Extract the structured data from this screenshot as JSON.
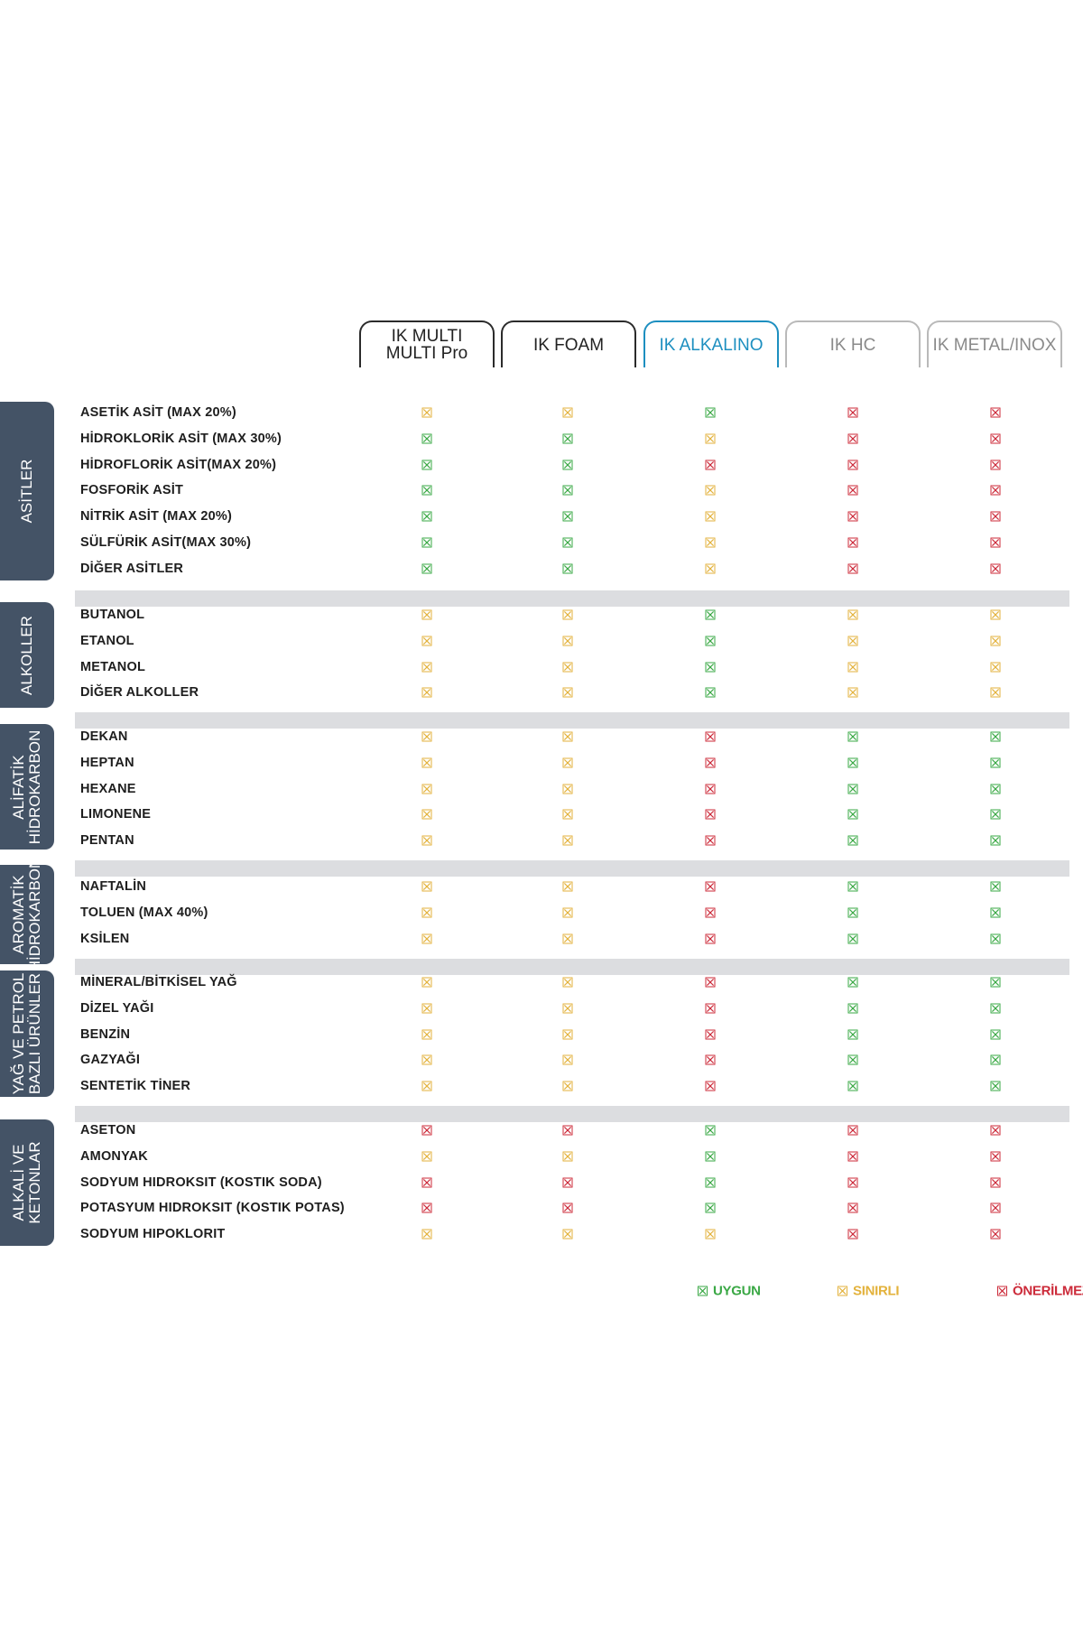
{
  "chart_data": {
    "type": "table",
    "columns": [
      {
        "label": "IK MULTI\nMULTI Pro",
        "style": "normal"
      },
      {
        "label": "IK FOAM",
        "style": "normal"
      },
      {
        "label": "IK ALKALINO",
        "style": "highlight"
      },
      {
        "label": "IK HC",
        "style": "light"
      },
      {
        "label": "IK METAL/INOX",
        "style": "light"
      }
    ],
    "status_legend": {
      "G": "UYGUN",
      "Y": "SINIRLI",
      "R": "ÖNERİLMEZ"
    },
    "groups": [
      {
        "name": "ASİTLER",
        "rows": [
          {
            "label": "ASETİK ASİT (MAX 20%)",
            "values": [
              "Y",
              "Y",
              "G",
              "R",
              "R"
            ]
          },
          {
            "label": "HİDROKLORİK ASİT (MAX 30%)",
            "values": [
              "G",
              "G",
              "Y",
              "R",
              "R"
            ]
          },
          {
            "label": "HİDROFLORİK ASİT(MAX 20%)",
            "values": [
              "G",
              "G",
              "R",
              "R",
              "R"
            ]
          },
          {
            "label": "FOSFORİK ASİT",
            "values": [
              "G",
              "G",
              "Y",
              "R",
              "R"
            ]
          },
          {
            "label": "NİTRİK ASİT (MAX 20%)",
            "values": [
              "G",
              "G",
              "Y",
              "R",
              "R"
            ]
          },
          {
            "label": "SÜLFÜRİK ASİT(MAX 30%)",
            "values": [
              "G",
              "G",
              "Y",
              "R",
              "R"
            ]
          },
          {
            "label": "DİĞER ASİTLER",
            "values": [
              "G",
              "G",
              "Y",
              "R",
              "R"
            ]
          }
        ]
      },
      {
        "name": "ALKOLLER",
        "rows": [
          {
            "label": "BUTANOL",
            "values": [
              "Y",
              "Y",
              "G",
              "Y",
              "Y"
            ]
          },
          {
            "label": "ETANOL",
            "values": [
              "Y",
              "Y",
              "G",
              "Y",
              "Y"
            ]
          },
          {
            "label": "METANOL",
            "values": [
              "Y",
              "Y",
              "G",
              "Y",
              "Y"
            ]
          },
          {
            "label": "DİĞER ALKOLLER",
            "values": [
              "Y",
              "Y",
              "G",
              "Y",
              "Y"
            ]
          }
        ]
      },
      {
        "name": "ALİFATİK\nHİDROKARBON",
        "rows": [
          {
            "label": "DEKAN",
            "values": [
              "Y",
              "Y",
              "R",
              "G",
              "G"
            ]
          },
          {
            "label": "HEPTAN",
            "values": [
              "Y",
              "Y",
              "R",
              "G",
              "G"
            ]
          },
          {
            "label": "HEXANE",
            "values": [
              "Y",
              "Y",
              "R",
              "G",
              "G"
            ]
          },
          {
            "label": "LIMONENE",
            "values": [
              "Y",
              "Y",
              "R",
              "G",
              "G"
            ]
          },
          {
            "label": "PENTAN",
            "values": [
              "Y",
              "Y",
              "R",
              "G",
              "G"
            ]
          }
        ]
      },
      {
        "name": "AROMATİK\nHİDROKARBON",
        "rows": [
          {
            "label": "NAFTALİN",
            "values": [
              "Y",
              "Y",
              "R",
              "G",
              "G"
            ]
          },
          {
            "label": "TOLUEN (MAX 40%)",
            "values": [
              "Y",
              "Y",
              "R",
              "G",
              "G"
            ]
          },
          {
            "label": "KSİLEN",
            "values": [
              "Y",
              "Y",
              "R",
              "G",
              "G"
            ]
          }
        ]
      },
      {
        "name": "YAĞ VE PETROL\nBAZLI ÜRÜNLER",
        "rows": [
          {
            "label": "MİNERAL/BİTKİSEL YAĞ",
            "values": [
              "Y",
              "Y",
              "R",
              "G",
              "G"
            ]
          },
          {
            "label": "DİZEL YAĞI",
            "values": [
              "Y",
              "Y",
              "R",
              "G",
              "G"
            ]
          },
          {
            "label": "BENZİN",
            "values": [
              "Y",
              "Y",
              "R",
              "G",
              "G"
            ]
          },
          {
            "label": "GAZYAĞI",
            "values": [
              "Y",
              "Y",
              "R",
              "G",
              "G"
            ]
          },
          {
            "label": "SENTETİK TİNER",
            "values": [
              "Y",
              "Y",
              "R",
              "G",
              "G"
            ]
          }
        ]
      },
      {
        "name": "ALKALİ VE\nKETONLAR",
        "rows": [
          {
            "label": "ASETON",
            "values": [
              "R",
              "R",
              "G",
              "R",
              "R"
            ]
          },
          {
            "label": "AMONYAK",
            "values": [
              "Y",
              "Y",
              "G",
              "R",
              "R"
            ]
          },
          {
            "label": "SODYUM HIDROKSIT (KOSTIK SODA)",
            "values": [
              "R",
              "R",
              "G",
              "R",
              "R"
            ]
          },
          {
            "label": "POTASYUM HIDROKSIT (KOSTIK POTAS)",
            "values": [
              "R",
              "R",
              "G",
              "R",
              "R"
            ]
          },
          {
            "label": "SODYUM HIPOKLORIT",
            "values": [
              "Y",
              "Y",
              "Y",
              "R",
              "R"
            ]
          }
        ]
      }
    ]
  },
  "legend": [
    {
      "code": "G",
      "label": "UYGUN"
    },
    {
      "code": "Y",
      "label": "SINIRLI"
    },
    {
      "code": "R",
      "label": "ÖNERİLMEZ"
    }
  ],
  "colors": {
    "G": "#3aa845",
    "Y": "#e3b23c",
    "R": "#cc2b3a",
    "group_bg": "#445366",
    "separator": "#dcdde0",
    "highlight": "#1d8fc0"
  }
}
